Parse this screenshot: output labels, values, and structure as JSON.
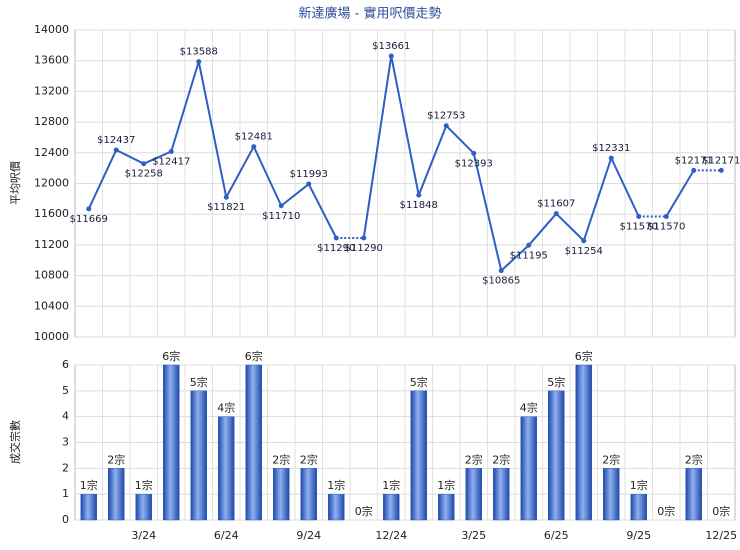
{
  "chart_data": [
    {
      "type": "line",
      "title": "新達廣場 - 實用呎價走勢",
      "y_label": "平均呎價",
      "series": [
        {
          "color": "#2f5ec4",
          "values": [
            11669,
            12437,
            12258,
            12417,
            13588,
            11821,
            12481,
            11710,
            11993,
            11290,
            11290,
            13661,
            11848,
            12753,
            12393,
            10865,
            11195,
            11607,
            11254,
            12331,
            11570,
            11570,
            12171,
            12171
          ],
          "value_labels": [
            "$11669",
            "$12437",
            "$12258",
            "$12417",
            "$13588",
            "$11821",
            "$12481",
            "$11710",
            "$11993",
            "$11290",
            "$11290",
            "$13661",
            "$11848",
            "$12753",
            "$12393",
            "$10865",
            "$11195",
            "$11607",
            "$11254",
            "$12331",
            "$11570",
            "$11570",
            "$12171",
            "$12171"
          ]
        }
      ],
      "ylim": [
        10000,
        14000
      ],
      "yticks": [
        10000,
        10400,
        10800,
        11200,
        11600,
        12000,
        12400,
        12800,
        13200,
        13600,
        14000
      ],
      "grid": true
    },
    {
      "type": "bar",
      "y_label": "成交宗數",
      "color": "#2f5ec4",
      "categories": [
        null,
        null,
        "3/24",
        null,
        null,
        "6/24",
        null,
        null,
        "9/24",
        null,
        null,
        "12/24",
        null,
        null,
        "3/25",
        null,
        null,
        "6/25",
        null,
        null,
        "9/25",
        null,
        null,
        "12/25"
      ],
      "values": [
        1,
        2,
        1,
        6,
        5,
        4,
        6,
        2,
        2,
        1,
        0,
        1,
        5,
        1,
        2,
        2,
        4,
        5,
        6,
        2,
        1,
        0,
        2,
        0
      ],
      "value_labels": [
        "1宗",
        "2宗",
        "1宗",
        "6宗",
        "5宗",
        "4宗",
        "6宗",
        "2宗",
        "2宗",
        "1宗",
        "0宗",
        "1宗",
        "5宗",
        "1宗",
        "2宗",
        "2宗",
        "4宗",
        "5宗",
        "6宗",
        "2宗",
        "1宗",
        "0宗",
        "2宗",
        "0宗"
      ],
      "ylim": [
        0,
        6
      ],
      "yticks": [
        0,
        1,
        2,
        3,
        4,
        5,
        6
      ],
      "grid": true
    }
  ]
}
